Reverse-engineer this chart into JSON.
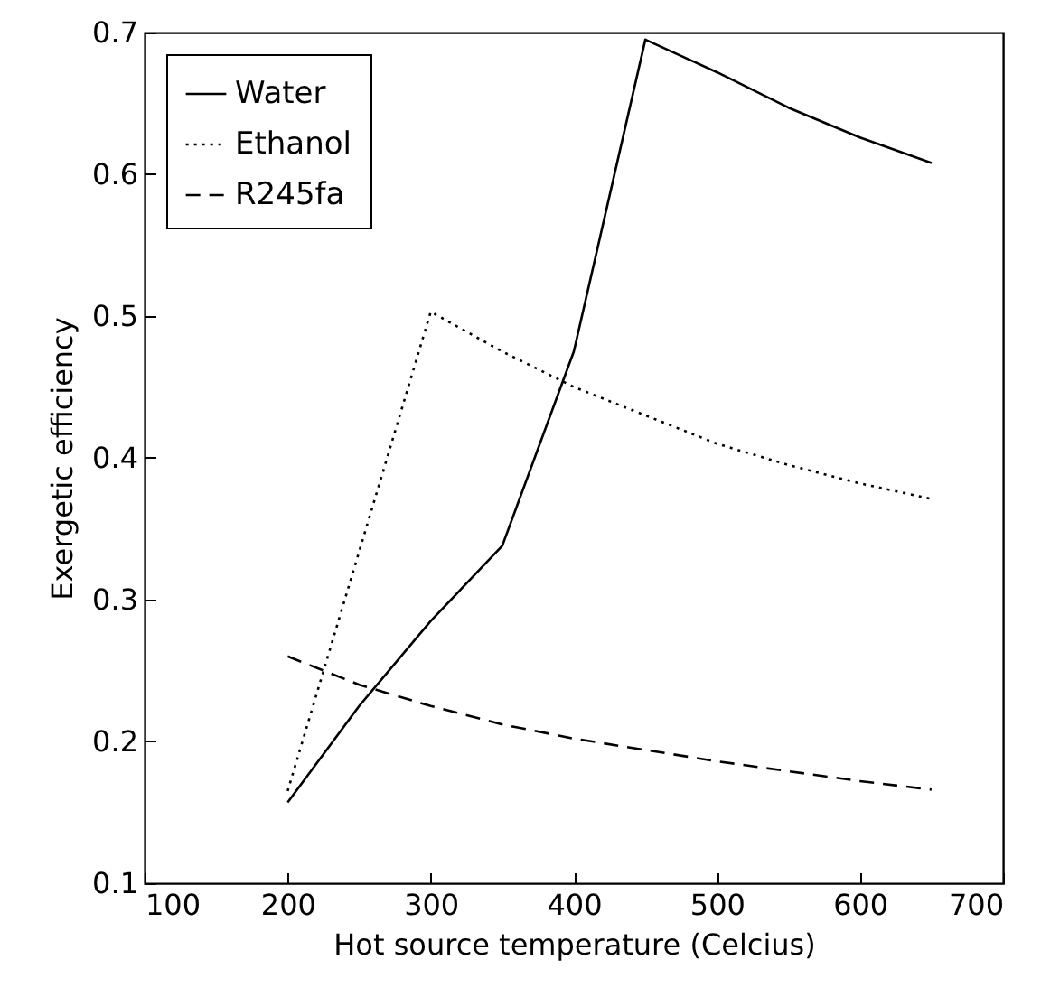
{
  "chart_data": {
    "type": "line",
    "xlabel": "Hot source temperature (Celcius)",
    "ylabel": "Exergetic efficiency",
    "x": [
      200,
      250,
      300,
      350,
      400,
      450,
      500,
      550,
      600,
      650
    ],
    "series": [
      {
        "name": "Water",
        "color": "#000000",
        "line_style": "solid",
        "values": [
          0.157,
          0.225,
          0.285,
          0.338,
          0.475,
          0.695,
          0.672,
          0.647,
          0.626,
          0.608
        ]
      },
      {
        "name": "Ethanol",
        "color": "#000000",
        "line_style": "dotted",
        "values": [
          0.165,
          0.334,
          0.503,
          0.475,
          0.45,
          0.43,
          0.41,
          0.395,
          0.382,
          0.371
        ]
      },
      {
        "name": "R245fa",
        "color": "#000000",
        "line_style": "dashed",
        "values": [
          0.26,
          0.24,
          0.225,
          0.212,
          0.202,
          0.194,
          0.186,
          0.179,
          0.172,
          0.166
        ]
      }
    ],
    "xlim": [
      100,
      700
    ],
    "xticks": [
      100,
      200,
      300,
      400,
      500,
      600,
      700
    ],
    "ylim": [
      0.1,
      0.7
    ],
    "yticks": [
      0.1,
      0.2,
      0.3,
      0.4,
      0.5,
      0.6,
      0.7
    ],
    "grid": false,
    "legend": "top left"
  }
}
